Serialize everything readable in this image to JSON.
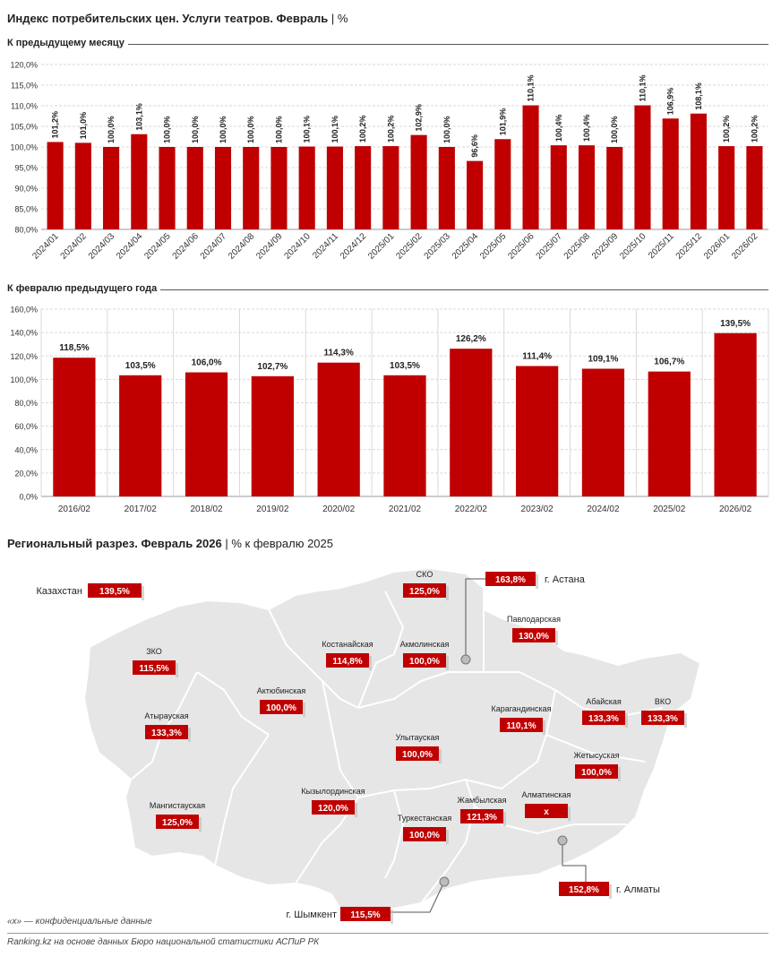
{
  "title": "Индекс потребительских цен. Услуги театров. Февраль",
  "title_unit": "%",
  "colors": {
    "bar": "#c00000",
    "label_bg": "#c00000",
    "map_fill": "#e6e6e6",
    "map_stroke": "#ffffff"
  },
  "chart_data": [
    {
      "type": "bar",
      "section_label": "К предыдущему месяцу",
      "categories": [
        "2024/01",
        "2024/02",
        "2024/03",
        "2024/04",
        "2024/05",
        "2024/06",
        "2024/07",
        "2024/08",
        "2024/09",
        "2024/10",
        "2024/11",
        "2024/12",
        "2025/01",
        "2025/02",
        "2025/03",
        "2025/04",
        "2025/05",
        "2025/06",
        "2025/07",
        "2025/08",
        "2025/09",
        "2025/10",
        "2025/11",
        "2025/12",
        "2026/01",
        "2026/02"
      ],
      "values": [
        101.2,
        101.0,
        100.0,
        103.1,
        100.0,
        100.0,
        100.0,
        100.0,
        100.0,
        100.1,
        100.1,
        100.2,
        100.2,
        102.9,
        100.0,
        96.6,
        101.9,
        110.1,
        100.4,
        100.4,
        100.0,
        110.1,
        106.9,
        108.1,
        100.2,
        100.2
      ],
      "value_labels": [
        "101,2%",
        "101,0%",
        "100,0%",
        "103,1%",
        "100,0%",
        "100,0%",
        "100,0%",
        "100,0%",
        "100,0%",
        "100,1%",
        "100,1%",
        "100,2%",
        "100,2%",
        "102,9%",
        "100,0%",
        "96,6%",
        "101,9%",
        "110,1%",
        "100,4%",
        "100,4%",
        "100,0%",
        "110,1%",
        "106,9%",
        "108,1%",
        "100,2%",
        "100,2%"
      ],
      "yticks": [
        "80,0%",
        "85,0%",
        "90,0%",
        "95,0%",
        "100,0%",
        "105,0%",
        "110,0%",
        "115,0%",
        "120,0%"
      ],
      "ylim": [
        80,
        120
      ],
      "grid": true
    },
    {
      "type": "bar",
      "section_label": "К февралю предыдущего года",
      "categories": [
        "2016/02",
        "2017/02",
        "2018/02",
        "2019/02",
        "2020/02",
        "2021/02",
        "2022/02",
        "2023/02",
        "2024/02",
        "2025/02",
        "2026/02"
      ],
      "values": [
        118.5,
        103.5,
        106.0,
        102.7,
        114.3,
        103.5,
        126.2,
        111.4,
        109.1,
        106.7,
        139.5
      ],
      "value_labels": [
        "118,5%",
        "103,5%",
        "106,0%",
        "102,7%",
        "114,3%",
        "103,5%",
        "126,2%",
        "111,4%",
        "109,1%",
        "106,7%",
        "139,5%"
      ],
      "yticks": [
        "0,0%",
        "20,0%",
        "40,0%",
        "60,0%",
        "80,0%",
        "100,0%",
        "120,0%",
        "140,0%",
        "160,0%"
      ],
      "ylim": [
        0,
        160
      ],
      "grid": true
    }
  ],
  "regional": {
    "title": "Региональный разрез. Февраль 2026",
    "unit": "% к февралю 2025",
    "kazakhstan": {
      "name": "Казахстан",
      "value": "139,5%"
    },
    "regions": [
      {
        "name": "СКО",
        "value": "125,0%"
      },
      {
        "name": "Павлодарская",
        "value": "130,0%"
      },
      {
        "name": "Костанайская",
        "value": "114,8%"
      },
      {
        "name": "Акмолинская",
        "value": "100,0%"
      },
      {
        "name": "ЗКО",
        "value": "115,5%"
      },
      {
        "name": "Актюбинская",
        "value": "100,0%"
      },
      {
        "name": "ВКО",
        "value": "133,3%"
      },
      {
        "name": "Атырауская",
        "value": "133,3%"
      },
      {
        "name": "Карагандинская",
        "value": "110,1%"
      },
      {
        "name": "Абайская",
        "value": "133,3%"
      },
      {
        "name": "Улытауская",
        "value": "100,0%"
      },
      {
        "name": "Жетысуская",
        "value": "100,0%"
      },
      {
        "name": "Мангистауская",
        "value": "125,0%"
      },
      {
        "name": "Кызылординская",
        "value": "120,0%"
      },
      {
        "name": "Жамбылская",
        "value": "121,3%"
      },
      {
        "name": "Алматинская",
        "value": "х"
      },
      {
        "name": "Туркестанская",
        "value": "100,0%"
      }
    ],
    "cities": [
      {
        "name": "г. Астана",
        "value": "163,8%"
      },
      {
        "name": "г. Алматы",
        "value": "152,8%"
      },
      {
        "name": "г. Шымкент",
        "value": "115,5%"
      }
    ]
  },
  "footnote": "«х» — конфиденциальные данные",
  "source": "Ranking.kz на основе данных Бюро национальной статистики АСПиР РК"
}
